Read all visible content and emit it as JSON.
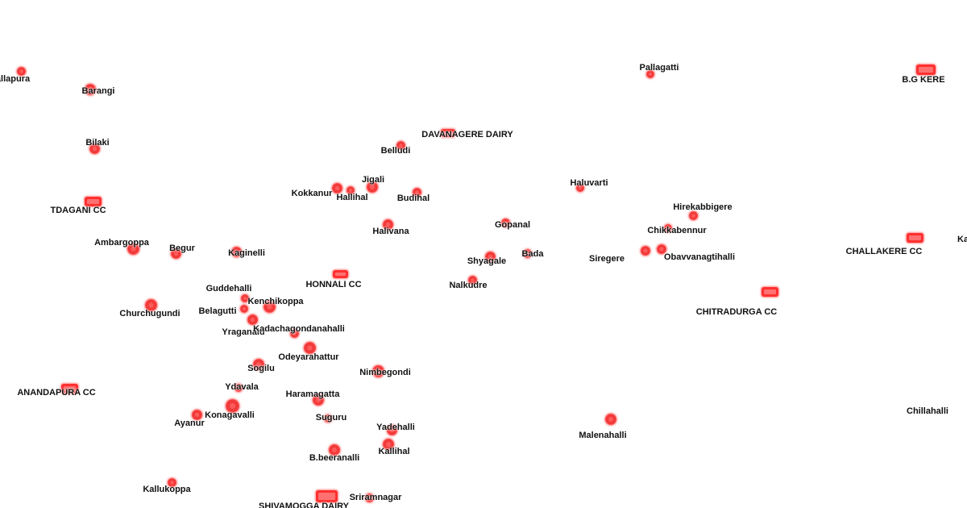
{
  "map": {
    "marker_color": "#ff3030",
    "places": [
      {
        "name": "allapura",
        "icon": "village-dot-icon"
      },
      {
        "name": "Barangi",
        "icon": "village-dot-icon"
      },
      {
        "name": "Bilaki",
        "icon": "village-dot-icon"
      },
      {
        "name": "TDAGANI CC",
        "icon": "collection-center-icon"
      },
      {
        "name": "Ambargoppa",
        "icon": "village-dot-icon"
      },
      {
        "name": "Begur",
        "icon": "village-dot-icon"
      },
      {
        "name": "Kaginelli",
        "icon": "village-dot-icon"
      },
      {
        "name": "Churchugundi",
        "icon": "village-dot-icon"
      },
      {
        "name": "Guddehalli",
        "icon": "village-dot-icon"
      },
      {
        "name": "Belagutti",
        "icon": "village-dot-icon"
      },
      {
        "name": "Kenchikoppa",
        "icon": "village-dot-icon"
      },
      {
        "name": "Yraganalu",
        "icon": "village-dot-icon"
      },
      {
        "name": "Kadachagondanahalli",
        "icon": "village-dot-icon"
      },
      {
        "name": "Odeyarahattur",
        "icon": "village-dot-icon"
      },
      {
        "name": "Sogilu",
        "icon": "village-dot-icon"
      },
      {
        "name": "Ydavala",
        "icon": "village-dot-icon"
      },
      {
        "name": "Konagavalli",
        "icon": "village-dot-icon"
      },
      {
        "name": "Ayanur",
        "icon": "village-dot-icon"
      },
      {
        "name": "ANANDAPURA CC",
        "icon": "collection-center-icon"
      },
      {
        "name": "Kallukoppa",
        "icon": "village-dot-icon"
      },
      {
        "name": "SHIVAMOGGA DAIRY",
        "icon": "dairy-icon"
      },
      {
        "name": "Sriramnagar",
        "icon": "village-dot-icon"
      },
      {
        "name": "B.beeranalli",
        "icon": "village-dot-icon"
      },
      {
        "name": "Kallihal",
        "icon": "village-dot-icon"
      },
      {
        "name": "Yadehalli",
        "icon": "village-dot-icon"
      },
      {
        "name": "Suguru",
        "icon": "village-dot-icon"
      },
      {
        "name": "Haramagatta",
        "icon": "village-dot-icon"
      },
      {
        "name": "Nimbegondi",
        "icon": "village-dot-icon"
      },
      {
        "name": "HONNALI CC",
        "icon": "collection-center-icon"
      },
      {
        "name": "Kokkanur",
        "icon": "village-dot-icon"
      },
      {
        "name": "Hallihal",
        "icon": "village-dot-icon"
      },
      {
        "name": "Jigali",
        "icon": "village-dot-icon"
      },
      {
        "name": "Budihal",
        "icon": "village-dot-icon"
      },
      {
        "name": "Belludi",
        "icon": "village-dot-icon"
      },
      {
        "name": "DAVANAGERE DAIRY",
        "icon": "dairy-icon"
      },
      {
        "name": "Halivana",
        "icon": "village-dot-icon"
      },
      {
        "name": "Gopanal",
        "icon": "village-dot-icon"
      },
      {
        "name": "Shyagale",
        "icon": "village-dot-icon"
      },
      {
        "name": "Bada",
        "icon": "village-dot-icon"
      },
      {
        "name": "Nalkudre",
        "icon": "village-dot-icon"
      },
      {
        "name": "Haluvarti",
        "icon": "village-dot-icon"
      },
      {
        "name": "Hirekabbigere",
        "icon": "village-dot-icon"
      },
      {
        "name": "Chikkabennur",
        "icon": "village-dot-icon"
      },
      {
        "name": "Siregere",
        "icon": "village-dot-icon"
      },
      {
        "name": "Obavvanagtihalli",
        "icon": "village-dot-icon"
      },
      {
        "name": "CHITRADURGA CC",
        "icon": "collection-center-icon"
      },
      {
        "name": "Malenahalli",
        "icon": "village-dot-icon"
      },
      {
        "name": "Pallagatti",
        "icon": "village-dot-icon"
      },
      {
        "name": "B.G KERE",
        "icon": "collection-center-icon"
      },
      {
        "name": "CHALLAKERE CC",
        "icon": "collection-center-icon"
      },
      {
        "name": "Kar",
        "icon": "village-dot-icon"
      },
      {
        "name": "Chillahalli",
        "icon": "village-dot-icon"
      }
    ]
  }
}
